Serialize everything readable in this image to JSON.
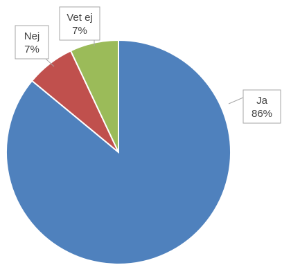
{
  "chart_data": {
    "type": "pie",
    "slices": [
      {
        "label": "Ja",
        "value": 86,
        "value_label": "86%",
        "color": "#4f81bd"
      },
      {
        "label": "Nej",
        "value": 7,
        "value_label": "7%",
        "color": "#c0504d"
      },
      {
        "label": "Vet ej",
        "value": 7,
        "value_label": "7%",
        "color": "#9bbb59"
      }
    ],
    "data_labels": "callouts (category name and percentage)",
    "legend": "none"
  }
}
